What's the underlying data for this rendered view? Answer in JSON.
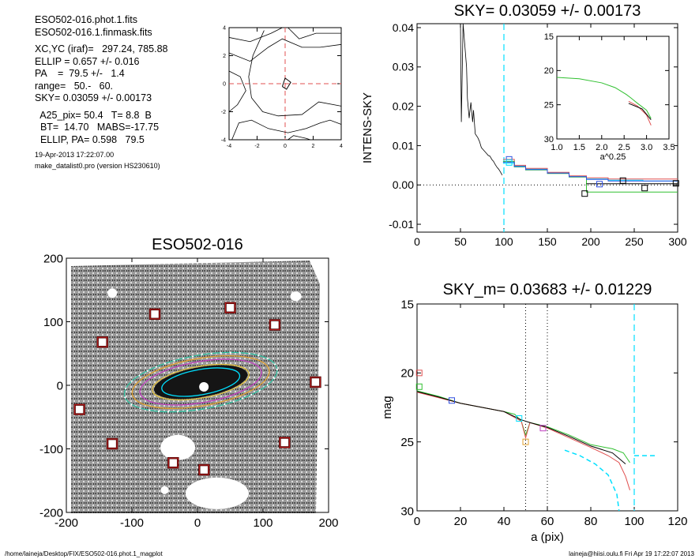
{
  "info": {
    "lines": [
      "ESO502-016.phot.1.fits",
      "ESO502-016.1.finmask.fits",
      "",
      "XC,YC (iraf)=   297.24, 785.88",
      "ELLIP = 0.657 +/- 0.016",
      "PA    =  79.5 +/-   1.4",
      "range=   50.-   60.",
      "SKY= 0.03059 +/- 0.00173",
      "",
      "  A25_pix= 50.4   T= 8.8  B",
      "  BT=  14.70   MABS=-17.75",
      "  ELLIP, PA= 0.598   79.5"
    ],
    "timestamp": "19-Apr-2013 17:22:07.00",
    "program": "make_datalist0.pro (version HS230610)"
  },
  "footer": {
    "left": "/home/laineja/Desktop/FIX/ESO502-016.phot.1_magplot",
    "right": "laineja@hiisi.oulu.fi  Fri Apr 19 17:22:07 2013"
  },
  "colors": {
    "cyan": "#00e0ff",
    "red": "#e05050",
    "green": "#30c030",
    "blue": "#3050e0",
    "purple": "#c040c0",
    "orange": "#e0a030",
    "black": "#000000"
  },
  "chart_data": [
    {
      "id": "contour",
      "type": "contour",
      "title": "",
      "xlim": [
        -4,
        4
      ],
      "ylim": [
        -4,
        4
      ],
      "xticks": [
        -4,
        -2,
        0,
        2,
        4
      ],
      "yticks": [
        -4,
        -2,
        0,
        2,
        4
      ]
    },
    {
      "id": "sky",
      "type": "line",
      "title": "SKY= 0.03059 +/- 0.00173",
      "xlabel": "",
      "ylabel": "INTENS-SKY",
      "xlim": [
        0,
        300
      ],
      "ylim": [
        -0.012,
        0.041
      ],
      "xticks": [
        0,
        50,
        100,
        150,
        200,
        250,
        300
      ],
      "yticks": [
        "-0.01",
        "0.00",
        "0.01",
        "0.02",
        "0.03",
        "0.04"
      ],
      "vline_cyan": 100,
      "profile": [
        [
          50,
          0.041
        ],
        [
          51,
          0.016
        ],
        [
          53,
          0.041
        ],
        [
          57,
          0.03
        ],
        [
          58,
          0.022
        ],
        [
          60,
          0.017
        ],
        [
          62,
          0.021
        ],
        [
          64,
          0.016
        ],
        [
          65,
          0.019
        ],
        [
          67,
          0.013
        ],
        [
          70,
          0.012
        ],
        [
          72,
          0.011
        ],
        [
          74,
          0.0095
        ],
        [
          76,
          0.009
        ],
        [
          78,
          0.0085
        ],
        [
          80,
          0.008
        ],
        [
          82,
          0.0075
        ],
        [
          84,
          0.0073
        ],
        [
          86,
          0.0065
        ],
        [
          88,
          0.006
        ],
        [
          90,
          0.0052
        ],
        [
          92,
          0.0045
        ],
        [
          94,
          0.004
        ],
        [
          96,
          0.0033
        ],
        [
          98,
          0.0025
        ]
      ],
      "steps": [
        {
          "color": "cyan",
          "pts": [
            [
              99,
              0.0055
            ],
            [
              112,
              0.0055
            ],
            [
              112,
              0.0048
            ],
            [
              125,
              0.0048
            ],
            [
              125,
              0.004
            ],
            [
              150,
              0.004
            ],
            [
              150,
              0.003
            ],
            [
              175,
              0.003
            ],
            [
              175,
              0.0022
            ],
            [
              195,
              0.0022
            ],
            [
              195,
              0.0015
            ],
            [
              220,
              0.0015
            ],
            [
              220,
              0.0012
            ],
            [
              260,
              0.0012
            ],
            [
              260,
              0.001
            ],
            [
              300,
              0.001
            ]
          ]
        },
        {
          "color": "red",
          "pts": [
            [
              99,
              0.0065
            ],
            [
              112,
              0.0065
            ],
            [
              112,
              0.005
            ],
            [
              125,
              0.005
            ],
            [
              125,
              0.0042
            ],
            [
              150,
              0.0042
            ],
            [
              150,
              0.0032
            ],
            [
              175,
              0.0032
            ],
            [
              175,
              0.0023
            ],
            [
              195,
              0.0023
            ],
            [
              195,
              0.0018
            ],
            [
              220,
              0.0018
            ],
            [
              220,
              0.0015
            ],
            [
              300,
              0.0015
            ]
          ]
        },
        {
          "color": "green",
          "pts": [
            [
              99,
              0.006
            ],
            [
              112,
              0.006
            ],
            [
              112,
              0.0046
            ],
            [
              125,
              0.0046
            ],
            [
              125,
              0.0038
            ],
            [
              150,
              0.0038
            ],
            [
              150,
              0.0029
            ],
            [
              175,
              0.0029
            ],
            [
              175,
              0.002
            ],
            [
              195,
              0.002
            ],
            [
              195,
              -0.0018
            ],
            [
              300,
              -0.0018
            ]
          ]
        },
        {
          "color": "blue",
          "pts": [
            [
              99,
              0.0058
            ],
            [
              112,
              0.0058
            ],
            [
              112,
              0.0047
            ],
            [
              125,
              0.0047
            ],
            [
              125,
              0.0039
            ],
            [
              150,
              0.0039
            ],
            [
              150,
              0.003
            ],
            [
              175,
              0.003
            ],
            [
              175,
              0.0021
            ],
            [
              195,
              0.0021
            ],
            [
              195,
              0.0014
            ],
            [
              220,
              0.0014
            ],
            [
              220,
              0.001
            ],
            [
              300,
              0.001
            ]
          ]
        },
        {
          "color": "black",
          "pts": [
            [
              195,
              0.0003
            ],
            [
              300,
              0.0003
            ]
          ]
        }
      ],
      "markers": [
        {
          "x": 106,
          "y": 0.0065,
          "color": "blue"
        },
        {
          "x": 106,
          "y": 0.0057,
          "color": "cyan"
        },
        {
          "x": 193,
          "y": -0.0022,
          "color": "black"
        },
        {
          "x": 210,
          "y": 0.0002,
          "color": "blue"
        },
        {
          "x": 237,
          "y": 0.0011,
          "color": "black"
        },
        {
          "x": 262,
          "y": -0.0008,
          "color": "black"
        },
        {
          "x": 298,
          "y": 0.0004,
          "color": "black"
        }
      ]
    },
    {
      "id": "inset",
      "type": "line",
      "xlabel": "a^0.25",
      "ylabel": "",
      "xlim": [
        1.0,
        3.5
      ],
      "ylim": [
        30,
        15
      ],
      "xticks": [
        "1.0",
        "1.5",
        "2.0",
        "2.5",
        "3.0",
        "3.5"
      ],
      "yticks": [
        15,
        20,
        25,
        30
      ],
      "series": [
        {
          "color": "green",
          "pts": [
            [
              1.0,
              21.0
            ],
            [
              1.5,
              21.2
            ],
            [
              2.0,
              21.8
            ],
            [
              2.3,
              22.5
            ],
            [
              2.55,
              23.5
            ],
            [
              2.65,
              24.0
            ],
            [
              2.8,
              24.8
            ],
            [
              3.0,
              25.8
            ],
            [
              3.1,
              27.0
            ]
          ]
        },
        {
          "color": "red",
          "pts": [
            [
              2.6,
              24.5
            ],
            [
              2.8,
              25.2
            ],
            [
              3.0,
              26.5
            ],
            [
              3.1,
              28.0
            ]
          ]
        },
        {
          "color": "black",
          "pts": [
            [
              2.6,
              24.8
            ],
            [
              2.9,
              25.6
            ],
            [
              3.1,
              27.2
            ]
          ]
        }
      ]
    },
    {
      "id": "image",
      "type": "image",
      "title": "ESO502-016",
      "xlim": [
        -200,
        200
      ],
      "ylim": [
        -200,
        200
      ],
      "xticks": [
        -200,
        -100,
        0,
        100,
        200
      ],
      "yticks": [
        -200,
        -100,
        0,
        100,
        200
      ],
      "masked_stars": [
        [
          -145,
          68
        ],
        [
          -65,
          112
        ],
        [
          50,
          122
        ],
        [
          118,
          95
        ],
        [
          -180,
          -38
        ],
        [
          -130,
          -92
        ],
        [
          -37,
          -122
        ],
        [
          10,
          -133
        ],
        [
          133,
          -90
        ],
        [
          180,
          5
        ]
      ]
    },
    {
      "id": "mag",
      "type": "line",
      "title": "SKY_m=  0.03683 +/- 0.01229",
      "xlabel": "a (pix)",
      "ylabel": "mag",
      "xlim": [
        0,
        120
      ],
      "ylim": [
        30,
        15
      ],
      "xticks": [
        0,
        20,
        40,
        60,
        80,
        100,
        120
      ],
      "yticks": [
        15,
        20,
        25,
        30
      ],
      "vlines_dotted": [
        50,
        60
      ],
      "vline_cyan": 100,
      "series": [
        {
          "color": "green",
          "pts": [
            [
              0,
              21.3
            ],
            [
              10,
              21.7
            ],
            [
              20,
              22.2
            ],
            [
              30,
              22.5
            ],
            [
              40,
              22.8
            ],
            [
              45,
              23.0
            ],
            [
              48,
              23.5
            ],
            [
              50,
              24.5
            ],
            [
              52,
              23.6
            ],
            [
              60,
              23.9
            ],
            [
              70,
              24.5
            ],
            [
              80,
              25.2
            ],
            [
              90,
              25.5
            ],
            [
              95,
              25.8
            ],
            [
              98,
              26.5
            ]
          ]
        },
        {
          "color": "red",
          "pts": [
            [
              0,
              21.4
            ],
            [
              10,
              21.8
            ],
            [
              20,
              22.2
            ],
            [
              30,
              22.5
            ],
            [
              40,
              22.8
            ],
            [
              48,
              23.5
            ],
            [
              50,
              24.7
            ],
            [
              52,
              23.6
            ],
            [
              60,
              24.0
            ],
            [
              70,
              24.7
            ],
            [
              80,
              25.4
            ],
            [
              88,
              26.0
            ],
            [
              93,
              26.5
            ],
            [
              96,
              27.5
            ],
            [
              98,
              28.5
            ]
          ]
        },
        {
          "color": "black",
          "pts": [
            [
              0,
              21.35
            ],
            [
              10,
              21.75
            ],
            [
              20,
              22.2
            ],
            [
              30,
              22.5
            ],
            [
              40,
              22.8
            ],
            [
              48,
              23.4
            ],
            [
              52,
              23.6
            ],
            [
              60,
              23.95
            ],
            [
              70,
              24.6
            ],
            [
              80,
              25.3
            ],
            [
              90,
              25.8
            ],
            [
              96,
              26.6
            ]
          ]
        },
        {
          "color": "cyan",
          "dashed": true,
          "pts": [
            [
              68,
              25.6
            ],
            [
              75,
              26.0
            ],
            [
              82,
              26.6
            ],
            [
              88,
              27.4
            ],
            [
              92,
              28.8
            ],
            [
              93,
              30
            ]
          ]
        },
        {
          "color": "cyan",
          "dashed": true,
          "pts": [
            [
              100,
              26.0
            ],
            [
              110,
              26.0
            ]
          ]
        }
      ],
      "markers": [
        {
          "x": 1,
          "y": 20.0,
          "color": "red"
        },
        {
          "x": 1,
          "y": 21.0,
          "color": "green"
        },
        {
          "x": 16,
          "y": 22.0,
          "color": "blue"
        },
        {
          "x": 47,
          "y": 23.3,
          "color": "cyan"
        },
        {
          "x": 50,
          "y": 25.0,
          "color": "orange"
        },
        {
          "x": 58,
          "y": 24.0,
          "color": "purple"
        }
      ]
    }
  ]
}
